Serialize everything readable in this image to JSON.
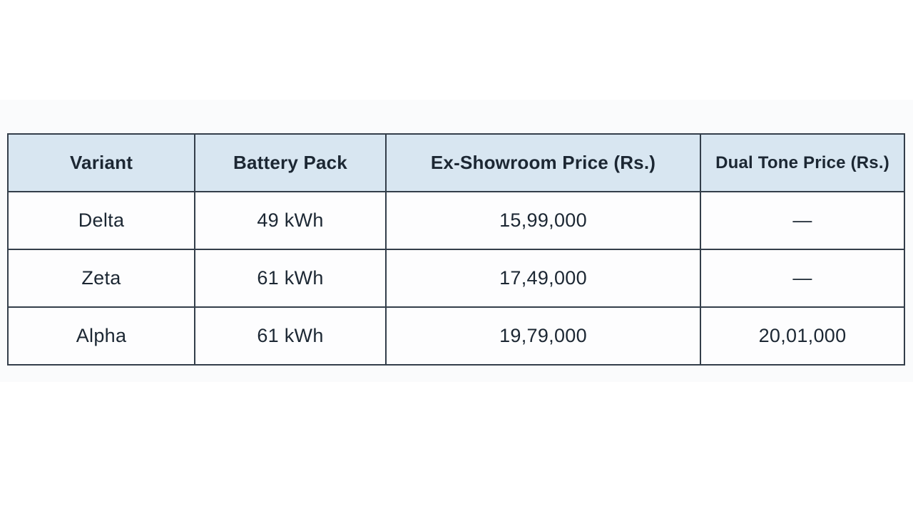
{
  "table": {
    "columns": [
      {
        "label": "Variant"
      },
      {
        "label": "Battery Pack"
      },
      {
        "label": "Ex-Showroom Price (Rs.)"
      },
      {
        "label": "Dual Tone Price (Rs.)"
      }
    ],
    "rows": [
      {
        "variant": "Delta",
        "battery": "49 kWh",
        "ex_showroom": "15,99,000",
        "dual_tone": "—"
      },
      {
        "variant": "Zeta",
        "battery": "61 kWh",
        "ex_showroom": "17,49,000",
        "dual_tone": "—"
      },
      {
        "variant": "Alpha",
        "battery": "61 kWh",
        "ex_showroom": "19,79,000",
        "dual_tone": "20,01,000"
      }
    ]
  },
  "colors": {
    "header_bg": "#d8e6f1",
    "cell_bg": "#fdfdfe",
    "border": "#333e4a",
    "text": "#1c2733",
    "band_bg": "#fafbfc",
    "frame_bg": "#ffffff"
  }
}
